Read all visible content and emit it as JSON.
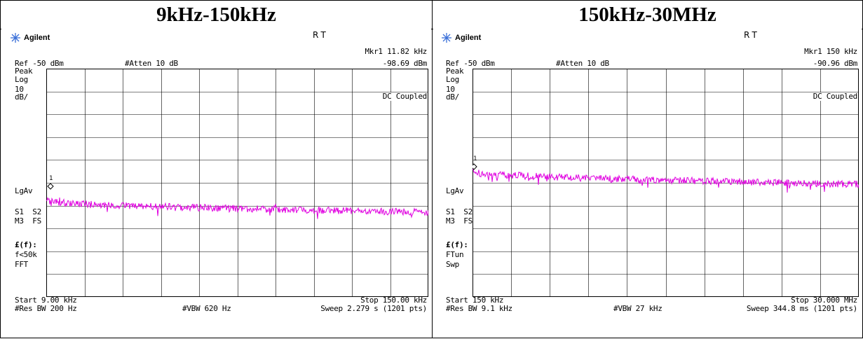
{
  "left": {
    "title": "9kHz-150kHz",
    "brand": "Agilent",
    "mode": "R  T",
    "marker": "Mkr1  11.82 kHz",
    "marker_level": "-98.69 dBm",
    "ref": "Ref -50 dBm",
    "atten": "#Atten 10 dB",
    "detector": "Peak",
    "scale_type": "Log",
    "scale_value": "10",
    "scale_unit": "dB/",
    "coupling": "DC Coupled",
    "avg": "LgAv",
    "s1s2": "S1  S2",
    "m3fs": "M3  FS",
    "lf": "£(f):",
    "lf1": "f<50k",
    "lf2": "FFT",
    "start": "Start 9.00 kHz",
    "stop": "Stop 150.00 kHz",
    "rbw": "#Res BW 200 Hz",
    "vbw": "#VBW 620 Hz",
    "sweep": "Sweep 2.279 s (1201 pts)",
    "marker_id": "1",
    "trace_color": "#e000e0"
  },
  "right": {
    "title": "150kHz-30MHz",
    "brand": "Agilent",
    "mode": "R  T",
    "marker": "Mkr1  150 kHz",
    "marker_level": "-90.96 dBm",
    "ref": "Ref -50 dBm",
    "atten": "#Atten 10 dB",
    "detector": "Peak",
    "scale_type": "Log",
    "scale_value": "10",
    "scale_unit": "dB/",
    "coupling": "DC Coupled",
    "avg": "LgAv",
    "s1s2": "S1  S2",
    "m3fs": "M3  FS",
    "lf": "£(f):",
    "lf1": "FTun",
    "lf2": "Swp",
    "start": "Start 150 kHz",
    "stop": "Stop 30.000 MHz",
    "rbw": "#Res BW 9.1 kHz",
    "vbw": "#VBW 27 kHz",
    "sweep": "Sweep 344.8 ms (1201 pts)",
    "marker_id": "1",
    "trace_color": "#e000e0"
  }
}
